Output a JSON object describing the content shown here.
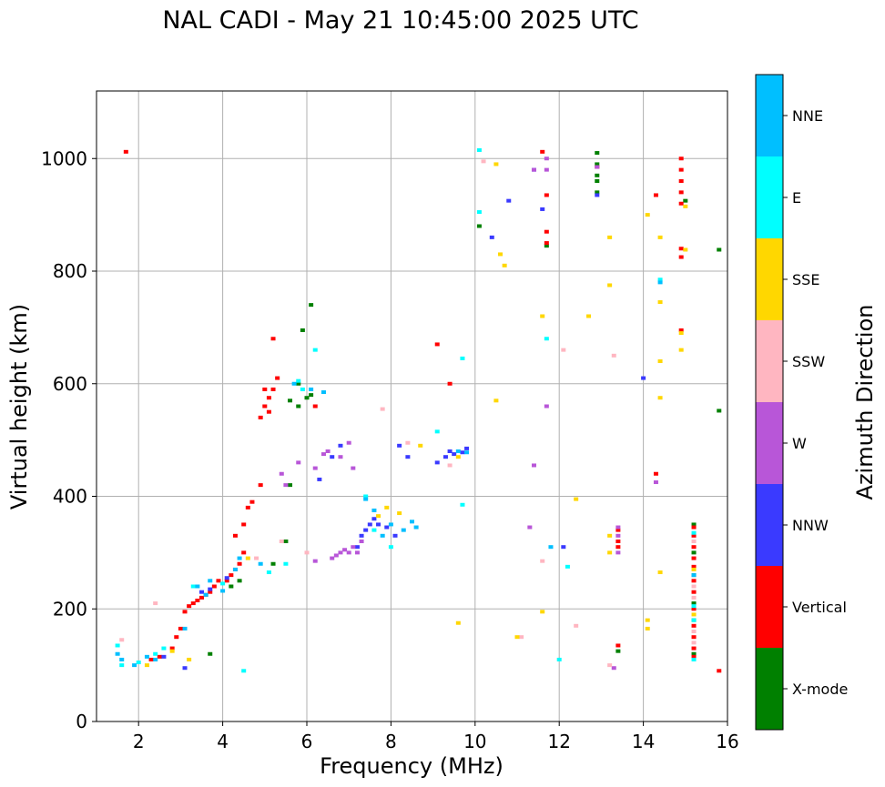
{
  "chart_data": {
    "type": "scatter",
    "title": "NAL CADI - May 21 10:45:00 2025 UTC",
    "xlabel": "Frequency (MHz)",
    "ylabel": "Virtual height (km)",
    "xlim": [
      1,
      16
    ],
    "ylim": [
      0,
      1120
    ],
    "xticks": [
      2,
      4,
      6,
      8,
      10,
      12,
      14,
      16
    ],
    "yticks": [
      0,
      200,
      400,
      600,
      800,
      1000
    ],
    "xtick_labels": [
      "2",
      "4",
      "6",
      "8",
      "10",
      "12",
      "14",
      "16"
    ],
    "ytick_labels": [
      "0",
      "200",
      "400",
      "600",
      "800",
      "1000"
    ],
    "grid": true,
    "colorbar": {
      "label": "Azimuth Direction",
      "categories": [
        {
          "name": "X-mode",
          "color": "#008000"
        },
        {
          "name": "Vertical",
          "color": "#ff0000"
        },
        {
          "name": "NNW",
          "color": "#3a3aff"
        },
        {
          "name": "W",
          "color": "#b856d8"
        },
        {
          "name": "SSW",
          "color": "#ffb6c1"
        },
        {
          "name": "SSE",
          "color": "#ffd700"
        },
        {
          "name": "E",
          "color": "#00ffff"
        },
        {
          "name": "NNE",
          "color": "#00bfff"
        }
      ]
    },
    "series": [
      {
        "name": "X-mode",
        "points": [
          [
            3.7,
            120
          ],
          [
            4.2,
            240
          ],
          [
            4.4,
            250
          ],
          [
            5.2,
            280
          ],
          [
            5.5,
            320
          ],
          [
            5.6,
            420
          ],
          [
            5.8,
            560
          ],
          [
            6.0,
            575
          ],
          [
            6.1,
            740
          ],
          [
            6.1,
            580
          ],
          [
            5.9,
            695
          ],
          [
            5.6,
            570
          ],
          [
            5.8,
            600
          ],
          [
            10.1,
            880
          ],
          [
            11.7,
            845
          ],
          [
            12.9,
            1010
          ],
          [
            12.9,
            990
          ],
          [
            12.9,
            960
          ],
          [
            12.9,
            940
          ],
          [
            12.9,
            970
          ],
          [
            13.4,
            125
          ],
          [
            15.0,
            925
          ],
          [
            15.2,
            350
          ],
          [
            15.2,
            300
          ],
          [
            15.2,
            260
          ],
          [
            15.2,
            210
          ],
          [
            15.2,
            180
          ],
          [
            15.2,
            120
          ],
          [
            15.8,
            838
          ],
          [
            15.8,
            552
          ]
        ]
      },
      {
        "name": "Vertical",
        "points": [
          [
            1.7,
            1012
          ],
          [
            2.3,
            110
          ],
          [
            2.5,
            115
          ],
          [
            2.8,
            130
          ],
          [
            2.9,
            150
          ],
          [
            3.0,
            165
          ],
          [
            3.1,
            195
          ],
          [
            3.2,
            205
          ],
          [
            3.3,
            210
          ],
          [
            3.4,
            215
          ],
          [
            3.5,
            220
          ],
          [
            3.6,
            225
          ],
          [
            3.7,
            230
          ],
          [
            3.8,
            240
          ],
          [
            3.9,
            250
          ],
          [
            4.1,
            250
          ],
          [
            4.2,
            260
          ],
          [
            4.3,
            270
          ],
          [
            4.4,
            280
          ],
          [
            4.5,
            300
          ],
          [
            4.3,
            330
          ],
          [
            4.5,
            350
          ],
          [
            4.7,
            390
          ],
          [
            4.6,
            380
          ],
          [
            4.9,
            420
          ],
          [
            4.9,
            540
          ],
          [
            5.0,
            560
          ],
          [
            5.1,
            575
          ],
          [
            5.2,
            590
          ],
          [
            5.3,
            610
          ],
          [
            5.0,
            590
          ],
          [
            5.1,
            550
          ],
          [
            5.2,
            680
          ],
          [
            6.2,
            560
          ],
          [
            9.1,
            670
          ],
          [
            9.4,
            600
          ],
          [
            11.6,
            1012
          ],
          [
            11.7,
            935
          ],
          [
            11.7,
            870
          ],
          [
            11.7,
            850
          ],
          [
            12.9,
            985
          ],
          [
            13.4,
            135
          ],
          [
            13.4,
            340
          ],
          [
            13.4,
            320
          ],
          [
            13.4,
            310
          ],
          [
            14.3,
            935
          ],
          [
            14.3,
            440
          ],
          [
            14.9,
            1000
          ],
          [
            14.9,
            980
          ],
          [
            14.9,
            960
          ],
          [
            14.9,
            940
          ],
          [
            14.9,
            920
          ],
          [
            14.9,
            840
          ],
          [
            14.9,
            825
          ],
          [
            14.9,
            695
          ],
          [
            15.2,
            345
          ],
          [
            15.2,
            330
          ],
          [
            15.2,
            310
          ],
          [
            15.2,
            290
          ],
          [
            15.2,
            275
          ],
          [
            15.2,
            250
          ],
          [
            15.2,
            230
          ],
          [
            15.2,
            200
          ],
          [
            15.2,
            170
          ],
          [
            15.2,
            150
          ],
          [
            15.2,
            130
          ],
          [
            15.2,
            115
          ],
          [
            15.8,
            90
          ]
        ]
      },
      {
        "name": "NNW",
        "points": [
          [
            2.6,
            115
          ],
          [
            3.1,
            95
          ],
          [
            3.5,
            230
          ],
          [
            3.7,
            235
          ],
          [
            4.1,
            255
          ],
          [
            6.3,
            430
          ],
          [
            6.6,
            470
          ],
          [
            6.8,
            490
          ],
          [
            7.2,
            310
          ],
          [
            7.3,
            330
          ],
          [
            7.4,
            340
          ],
          [
            7.5,
            350
          ],
          [
            7.6,
            360
          ],
          [
            7.7,
            350
          ],
          [
            7.9,
            345
          ],
          [
            8.1,
            330
          ],
          [
            8.2,
            490
          ],
          [
            8.4,
            470
          ],
          [
            9.1,
            460
          ],
          [
            9.3,
            470
          ],
          [
            9.4,
            480
          ],
          [
            9.5,
            475
          ],
          [
            9.7,
            478
          ],
          [
            9.8,
            485
          ],
          [
            10.4,
            860
          ],
          [
            10.8,
            925
          ],
          [
            11.6,
            910
          ],
          [
            11.4,
            980
          ],
          [
            12.1,
            310
          ],
          [
            12.9,
            935
          ],
          [
            14.0,
            610
          ]
        ]
      },
      {
        "name": "W",
        "points": [
          [
            5.4,
            440
          ],
          [
            5.5,
            420
          ],
          [
            5.8,
            460
          ],
          [
            6.2,
            450
          ],
          [
            6.4,
            475
          ],
          [
            6.6,
            290
          ],
          [
            6.7,
            295
          ],
          [
            6.8,
            300
          ],
          [
            6.9,
            305
          ],
          [
            7.0,
            300
          ],
          [
            7.1,
            310
          ],
          [
            7.2,
            300
          ],
          [
            7.3,
            320
          ],
          [
            6.2,
            285
          ],
          [
            6.5,
            480
          ],
          [
            6.8,
            470
          ],
          [
            7.0,
            495
          ],
          [
            7.1,
            450
          ],
          [
            11.3,
            345
          ],
          [
            11.4,
            980
          ],
          [
            11.4,
            455
          ],
          [
            11.7,
            560
          ],
          [
            11.7,
            1000
          ],
          [
            11.7,
            980
          ],
          [
            12.9,
            985
          ],
          [
            13.3,
            95
          ],
          [
            13.4,
            345
          ],
          [
            13.4,
            330
          ],
          [
            13.4,
            300
          ],
          [
            14.3,
            425
          ]
        ]
      },
      {
        "name": "SSW",
        "points": [
          [
            1.6,
            145
          ],
          [
            2.4,
            210
          ],
          [
            4.8,
            290
          ],
          [
            5.4,
            320
          ],
          [
            6.0,
            300
          ],
          [
            7.8,
            555
          ],
          [
            8.4,
            495
          ],
          [
            9.4,
            455
          ],
          [
            10.2,
            995
          ],
          [
            11.1,
            150
          ],
          [
            11.6,
            285
          ],
          [
            12.1,
            660
          ],
          [
            12.4,
            170
          ],
          [
            13.2,
            100
          ],
          [
            13.3,
            650
          ],
          [
            15.2,
            320
          ],
          [
            15.2,
            240
          ],
          [
            15.2,
            220
          ],
          [
            15.2,
            160
          ],
          [
            15.2,
            140
          ]
        ]
      },
      {
        "name": "SSE",
        "points": [
          [
            2.2,
            100
          ],
          [
            2.8,
            125
          ],
          [
            3.2,
            110
          ],
          [
            4.6,
            290
          ],
          [
            7.7,
            365
          ],
          [
            7.9,
            380
          ],
          [
            8.2,
            370
          ],
          [
            8.7,
            490
          ],
          [
            9.6,
            470
          ],
          [
            9.6,
            175
          ],
          [
            10.5,
            990
          ],
          [
            10.5,
            570
          ],
          [
            10.6,
            830
          ],
          [
            10.7,
            810
          ],
          [
            11.0,
            150
          ],
          [
            11.6,
            720
          ],
          [
            11.6,
            195
          ],
          [
            12.4,
            395
          ],
          [
            12.7,
            720
          ],
          [
            13.2,
            860
          ],
          [
            13.2,
            775
          ],
          [
            13.2,
            330
          ],
          [
            13.2,
            300
          ],
          [
            14.1,
            900
          ],
          [
            14.1,
            180
          ],
          [
            14.1,
            165
          ],
          [
            14.4,
            860
          ],
          [
            14.4,
            745
          ],
          [
            14.4,
            640
          ],
          [
            14.4,
            575
          ],
          [
            14.4,
            265
          ],
          [
            14.9,
            690
          ],
          [
            14.9,
            660
          ],
          [
            15.0,
            915
          ],
          [
            15.0,
            838
          ],
          [
            15.2,
            270
          ],
          [
            15.2,
            190
          ]
        ]
      },
      {
        "name": "E",
        "points": [
          [
            1.5,
            135
          ],
          [
            1.6,
            100
          ],
          [
            2.0,
            105
          ],
          [
            2.4,
            120
          ],
          [
            2.6,
            130
          ],
          [
            3.3,
            240
          ],
          [
            4.0,
            245
          ],
          [
            4.5,
            90
          ],
          [
            5.1,
            265
          ],
          [
            5.5,
            280
          ],
          [
            5.8,
            605
          ],
          [
            5.9,
            590
          ],
          [
            6.2,
            660
          ],
          [
            7.4,
            400
          ],
          [
            7.6,
            340
          ],
          [
            8.0,
            310
          ],
          [
            9.1,
            515
          ],
          [
            9.7,
            385
          ],
          [
            9.7,
            645
          ],
          [
            10.1,
            1015
          ],
          [
            10.1,
            905
          ],
          [
            11.7,
            680
          ],
          [
            12.0,
            110
          ],
          [
            12.2,
            275
          ],
          [
            14.4,
            785
          ],
          [
            15.2,
            335
          ],
          [
            15.2,
            205
          ],
          [
            15.2,
            180
          ],
          [
            15.2,
            110
          ]
        ]
      },
      {
        "name": "NNE",
        "points": [
          [
            1.5,
            120
          ],
          [
            1.6,
            110
          ],
          [
            1.9,
            100
          ],
          [
            2.2,
            115
          ],
          [
            2.4,
            110
          ],
          [
            3.1,
            165
          ],
          [
            3.4,
            240
          ],
          [
            3.6,
            225
          ],
          [
            3.7,
            250
          ],
          [
            4.0,
            232
          ],
          [
            4.3,
            270
          ],
          [
            4.4,
            290
          ],
          [
            4.9,
            280
          ],
          [
            5.7,
            600
          ],
          [
            6.1,
            590
          ],
          [
            6.4,
            585
          ],
          [
            7.4,
            395
          ],
          [
            7.6,
            375
          ],
          [
            7.8,
            330
          ],
          [
            8.0,
            350
          ],
          [
            8.3,
            340
          ],
          [
            8.5,
            355
          ],
          [
            8.6,
            345
          ],
          [
            9.6,
            480
          ],
          [
            9.8,
            478
          ],
          [
            11.8,
            310
          ],
          [
            14.4,
            780
          ],
          [
            15.2,
            260
          ]
        ]
      }
    ]
  }
}
